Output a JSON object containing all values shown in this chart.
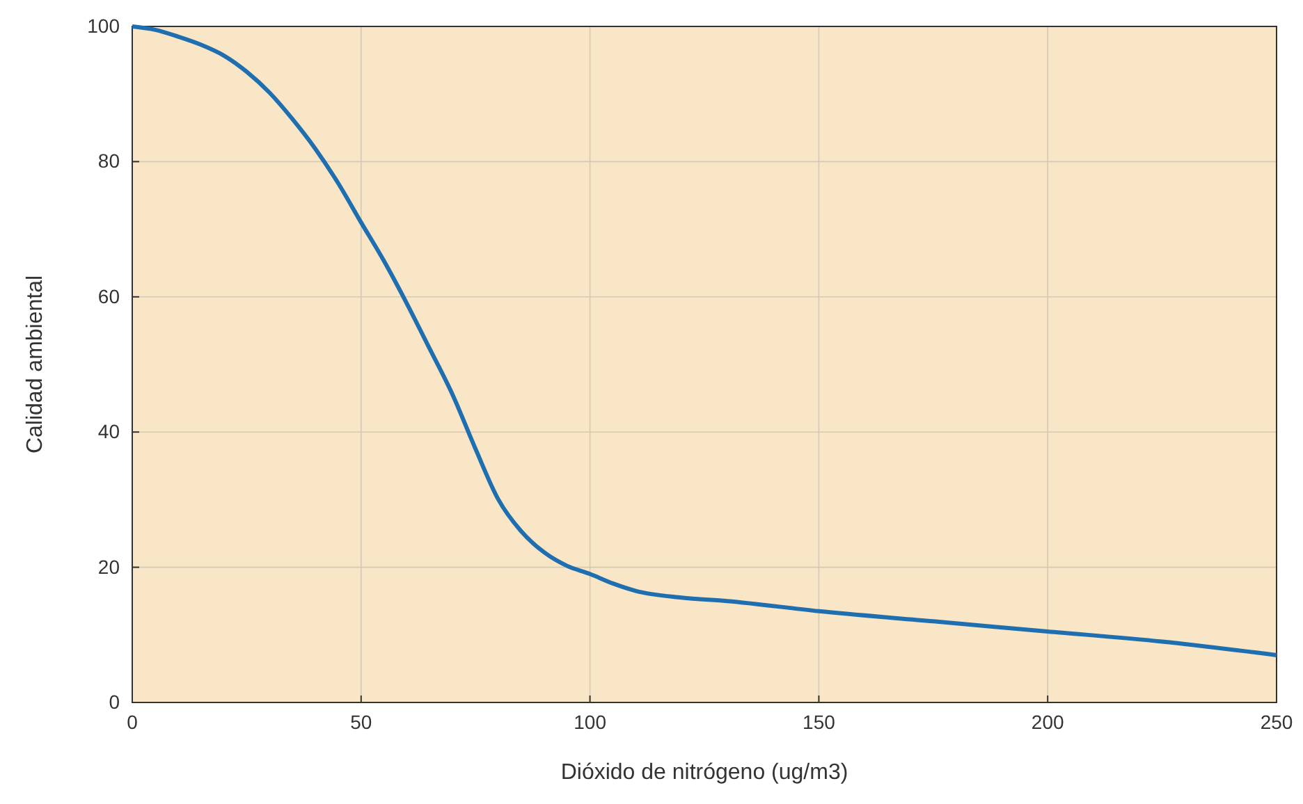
{
  "chart_data": {
    "type": "line",
    "xlabel": "Dióxido de nitrógeno (ug/m3)",
    "ylabel": "Calidad ambiental",
    "x": [
      0,
      5,
      10,
      15,
      20,
      25,
      30,
      35,
      40,
      45,
      50,
      55,
      60,
      65,
      70,
      75,
      80,
      85,
      90,
      95,
      100,
      105,
      110,
      120,
      130,
      150,
      175,
      200,
      225,
      250
    ],
    "series": [
      {
        "color": "#1f6fb0",
        "values": [
          100,
          99.5,
          98.5,
          97.3,
          95.7,
          93.3,
          90.2,
          86.3,
          81.9,
          76.8,
          71,
          65.3,
          59,
          52.3,
          45.5,
          37.5,
          30,
          25.3,
          22.2,
          20.2,
          19,
          17.6,
          16.5,
          15.5,
          15,
          13.5,
          12,
          10.5,
          9,
          7
        ]
      }
    ],
    "xlim": [
      0,
      250
    ],
    "ylim": [
      0,
      100
    ],
    "xticks": [
      0,
      50,
      100,
      150,
      200,
      250
    ],
    "yticks": [
      0,
      20,
      40,
      60,
      80,
      100
    ],
    "grid": true,
    "line_style": "solid",
    "marker": "none"
  }
}
